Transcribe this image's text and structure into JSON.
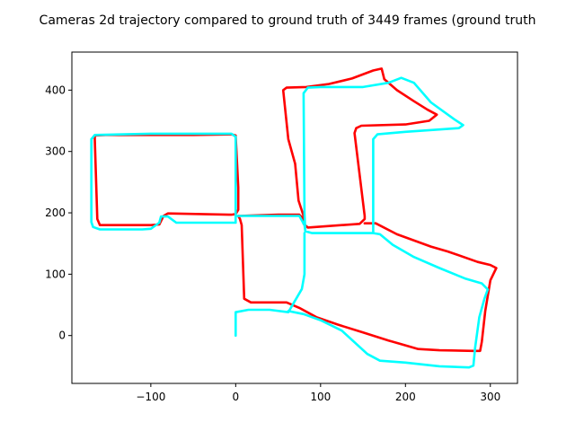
{
  "chart_data": {
    "type": "line",
    "title": "Cameras 2d trajectory compared to ground truth of 3449 frames (ground truth",
    "xlabel": "",
    "ylabel": "",
    "xlim": [
      -193,
      332
    ],
    "ylim": [
      -78,
      462
    ],
    "x_ticks": [
      -100,
      0,
      100,
      200,
      300
    ],
    "y_ticks": [
      0,
      100,
      200,
      300,
      400
    ],
    "x_tick_labels": [
      "−100",
      "0",
      "100",
      "200",
      "300"
    ],
    "y_tick_labels": [
      "0",
      "100",
      "200",
      "300",
      "400"
    ],
    "grid": false,
    "legend": "none",
    "series": [
      {
        "color": "#ff0000",
        "points": [
          [
            -166,
            326
          ],
          [
            -153,
            327
          ],
          [
            -100,
            327
          ],
          [
            -50,
            327
          ],
          [
            -5,
            328
          ],
          [
            0,
            326
          ],
          [
            3,
            241
          ],
          [
            3,
            205
          ],
          [
            0,
            198
          ],
          [
            -5,
            197
          ],
          [
            -80,
            199
          ],
          [
            -85,
            195
          ],
          [
            -90,
            181
          ],
          [
            -100,
            180
          ],
          [
            -160,
            180
          ],
          [
            -163,
            190
          ],
          [
            -166,
            320
          ],
          [
            -166,
            326
          ]
        ]
      },
      {
        "color": "#ff0000",
        "points": [
          [
            3,
            195
          ],
          [
            50,
            197
          ],
          [
            75,
            197
          ],
          [
            80,
            190
          ],
          [
            80,
            182
          ],
          [
            85,
            176
          ],
          [
            146,
            182
          ],
          [
            152,
            190
          ],
          [
            152,
            195
          ],
          [
            140,
            330
          ],
          [
            142,
            338
          ],
          [
            148,
            342
          ],
          [
            200,
            344
          ],
          [
            228,
            350
          ],
          [
            237,
            360
          ],
          [
            226,
            368
          ],
          [
            210,
            382
          ],
          [
            190,
            400
          ],
          [
            175,
            418
          ],
          [
            172,
            435
          ],
          [
            162,
            432
          ],
          [
            137,
            419
          ],
          [
            110,
            410
          ],
          [
            83,
            405
          ],
          [
            60,
            404
          ],
          [
            56,
            400
          ],
          [
            62,
            320
          ],
          [
            70,
            280
          ],
          [
            74,
            220
          ],
          [
            80,
            195
          ],
          [
            80,
            190
          ]
        ]
      },
      {
        "color": "#ff0000",
        "points": [
          [
            3,
            195
          ],
          [
            5,
            190
          ],
          [
            7,
            180
          ],
          [
            10,
            60
          ],
          [
            18,
            54
          ],
          [
            60,
            54
          ],
          [
            75,
            45
          ],
          [
            95,
            30
          ],
          [
            120,
            18
          ],
          [
            150,
            5
          ],
          [
            180,
            -8
          ],
          [
            215,
            -22
          ],
          [
            240,
            -24
          ],
          [
            280,
            -25
          ],
          [
            288,
            -25
          ],
          [
            290,
            -10
          ],
          [
            294,
            40
          ],
          [
            300,
            90
          ],
          [
            307,
            110
          ],
          [
            300,
            115
          ],
          [
            285,
            120
          ],
          [
            250,
            137
          ],
          [
            230,
            145
          ],
          [
            190,
            165
          ],
          [
            165,
            183
          ],
          [
            152,
            183
          ]
        ]
      },
      {
        "color": "#00ffff",
        "points": [
          [
            -170,
            320
          ],
          [
            -166,
            327
          ],
          [
            -100,
            329
          ],
          [
            -50,
            329
          ],
          [
            -5,
            329
          ],
          [
            0,
            324
          ],
          [
            0,
            200
          ],
          [
            0,
            184
          ],
          [
            -70,
            184
          ],
          [
            -80,
            194
          ],
          [
            -88,
            194
          ],
          [
            -90,
            184
          ],
          [
            -100,
            174
          ],
          [
            -110,
            173
          ],
          [
            -160,
            173
          ],
          [
            -168,
            177
          ],
          [
            -170,
            185
          ],
          [
            -170,
            320
          ]
        ]
      },
      {
        "color": "#00ffff",
        "points": [
          [
            2,
            195
          ],
          [
            75,
            195
          ],
          [
            81,
            180
          ],
          [
            82,
            170
          ],
          [
            90,
            167
          ],
          [
            162,
            167
          ],
          [
            162,
            320
          ],
          [
            167,
            328
          ],
          [
            200,
            332
          ],
          [
            263,
            338
          ],
          [
            268,
            343
          ],
          [
            258,
            352
          ],
          [
            230,
            380
          ],
          [
            210,
            412
          ],
          [
            195,
            420
          ],
          [
            180,
            412
          ],
          [
            150,
            405
          ],
          [
            100,
            405
          ],
          [
            85,
            404
          ],
          [
            80,
            395
          ],
          [
            81,
            200
          ],
          [
            82,
            170
          ]
        ]
      },
      {
        "color": "#00ffff",
        "points": [
          [
            0,
            0
          ],
          [
            0,
            20
          ],
          [
            0,
            38
          ],
          [
            15,
            42
          ],
          [
            40,
            42
          ],
          [
            62,
            38
          ],
          [
            78,
            76
          ],
          [
            81,
            100
          ],
          [
            81,
            167
          ]
        ]
      },
      {
        "color": "#00ffff",
        "points": [
          [
            62,
            40
          ],
          [
            80,
            35
          ],
          [
            100,
            25
          ],
          [
            125,
            8
          ],
          [
            155,
            -30
          ],
          [
            170,
            -41
          ],
          [
            200,
            -44
          ],
          [
            240,
            -50
          ],
          [
            275,
            -52
          ],
          [
            280,
            -49
          ],
          [
            282,
            -20
          ],
          [
            287,
            30
          ],
          [
            293,
            60
          ],
          [
            297,
            75
          ],
          [
            290,
            85
          ],
          [
            270,
            93
          ],
          [
            240,
            110
          ],
          [
            210,
            128
          ],
          [
            185,
            148
          ],
          [
            170,
            165
          ],
          [
            162,
            167
          ]
        ]
      }
    ]
  }
}
